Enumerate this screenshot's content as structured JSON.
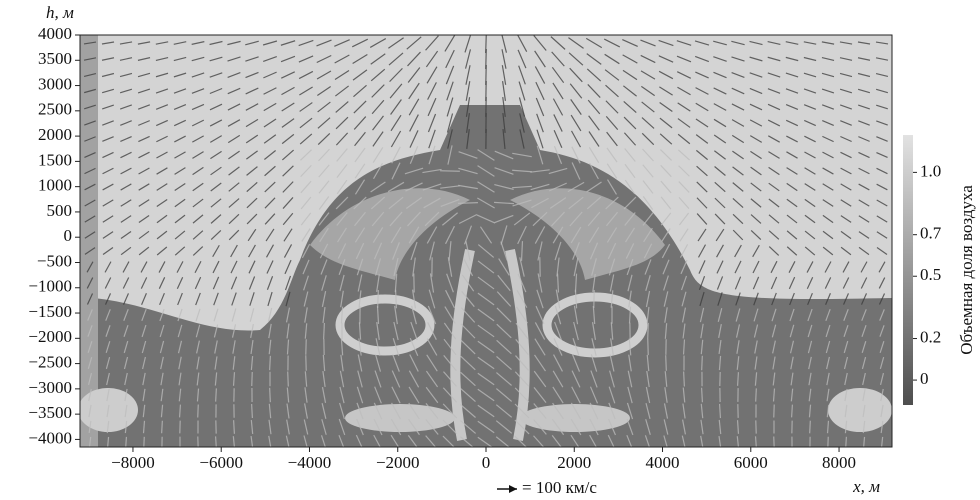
{
  "chart_data": {
    "type": "field",
    "y_label": "h, м",
    "x_label": "x, м",
    "colorbar_label": "Объемная доля воздуха",
    "vector_key_label": "= 100 км/с",
    "xlim": [
      -9200,
      9200
    ],
    "ylim": [
      -4150,
      4000
    ],
    "xticks": [
      {
        "value": -8000,
        "label": "−8000"
      },
      {
        "value": -6000,
        "label": "−6000"
      },
      {
        "value": -4000,
        "label": "−4000"
      },
      {
        "value": -2000,
        "label": "−2000"
      },
      0,
      2000,
      4000,
      6000,
      8000
    ],
    "yticks": [
      4000,
      3500,
      3000,
      2500,
      2000,
      1500,
      1000,
      500,
      0,
      {
        "value": -500,
        "label": "−500"
      },
      {
        "value": -1000,
        "label": "−1000"
      },
      {
        "value": -1500,
        "label": "−1500"
      },
      {
        "value": -2000,
        "label": "−2000"
      },
      {
        "value": -2500,
        "label": "−2500"
      },
      {
        "value": -3000,
        "label": "−3000"
      },
      {
        "value": -3500,
        "label": "−3500"
      },
      {
        "value": -4000,
        "label": "−4000"
      }
    ],
    "clim": [
      -0.12,
      1.18
    ],
    "cticks": [
      {
        "value": 1,
        "label": "1.0"
      },
      0.7,
      0.5,
      0.2,
      0
    ]
  }
}
